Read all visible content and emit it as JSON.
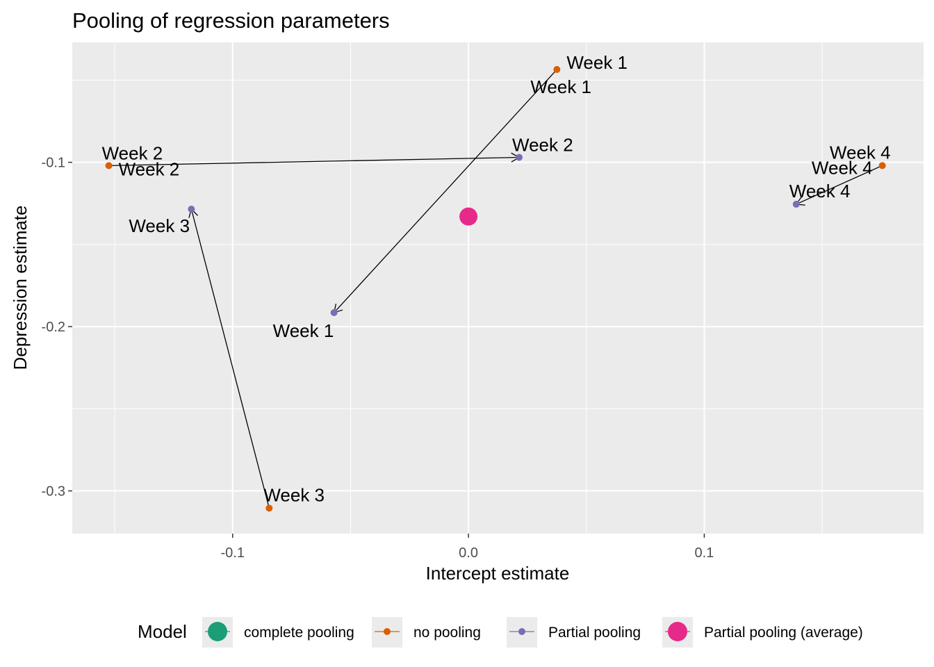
{
  "chart_data": {
    "type": "scatter",
    "title": "Pooling of regression parameters",
    "xlabel": "Intercept estimate",
    "ylabel": "Depression estimate",
    "xlim": [
      -0.168,
      0.193
    ],
    "ylim": [
      -0.326,
      -0.027
    ],
    "xticks": [
      -0.1,
      0.0,
      0.1
    ],
    "xtick_labels": [
      "-0.1",
      "0.0",
      "0.1"
    ],
    "yticks": [
      -0.1,
      -0.2,
      -0.3
    ],
    "ytick_labels": [
      "-0.1",
      "-0.2",
      "-0.3"
    ],
    "grid": true,
    "legend_position": "bottom",
    "legend_title": "Model",
    "series": [
      {
        "name": "complete pooling",
        "color": "#1B9E77",
        "points": []
      },
      {
        "name": "no pooling",
        "color": "#D95F02",
        "points": [
          {
            "label": "Week 1",
            "x": 0.0375,
            "y": -0.0435
          },
          {
            "label": "Week 2",
            "x": -0.1525,
            "y": -0.102
          },
          {
            "label": "Week 3",
            "x": -0.0845,
            "y": -0.3105
          },
          {
            "label": "Week 4",
            "x": 0.1755,
            "y": -0.102
          }
        ]
      },
      {
        "name": "Partial pooling",
        "color": "#7570B3",
        "points": [
          {
            "label": "Week 1",
            "x": -0.057,
            "y": -0.1915
          },
          {
            "label": "Week 2",
            "x": 0.0215,
            "y": -0.097
          },
          {
            "label": "Week 3",
            "x": -0.1175,
            "y": -0.1285
          },
          {
            "label": "Week 4",
            "x": 0.139,
            "y": -0.1255
          }
        ]
      },
      {
        "name": "Partial pooling (average)",
        "color": "#E7298A",
        "points": [
          {
            "label": "",
            "x": 0.0,
            "y": -0.133
          }
        ]
      }
    ],
    "arrows": [
      {
        "from": "Week 1",
        "from_xy": [
          0.0375,
          -0.0435
        ],
        "to_xy": [
          -0.057,
          -0.1915
        ]
      },
      {
        "from": "Week 2",
        "from_xy": [
          -0.1525,
          -0.102
        ],
        "to_xy": [
          0.0215,
          -0.097
        ]
      },
      {
        "from": "Week 3",
        "from_xy": [
          -0.0845,
          -0.3105
        ],
        "to_xy": [
          -0.1175,
          -0.1285
        ]
      },
      {
        "from": "Week 4",
        "from_xy": [
          0.1755,
          -0.102
        ],
        "to_xy": [
          0.139,
          -0.1255
        ]
      }
    ],
    "point_labels": [
      {
        "text": "Week 1",
        "near": [
          0.0375,
          -0.0435
        ]
      },
      {
        "text": "Week 1",
        "near": [
          0.0375,
          -0.0435
        ]
      },
      {
        "text": "Week 2",
        "near": [
          -0.1525,
          -0.102
        ]
      },
      {
        "text": "Week 2",
        "near": [
          -0.1525,
          -0.102
        ]
      },
      {
        "text": "Week 2",
        "near": [
          0.0215,
          -0.097
        ]
      },
      {
        "text": "Week 3",
        "near": [
          -0.1175,
          -0.1285
        ]
      },
      {
        "text": "Week 3",
        "near": [
          -0.0845,
          -0.3105
        ]
      },
      {
        "text": "Week 1",
        "near": [
          -0.057,
          -0.1915
        ]
      },
      {
        "text": "Week 4",
        "near": [
          0.1755,
          -0.102
        ]
      },
      {
        "text": "Week 4",
        "near": [
          0.1755,
          -0.102
        ]
      },
      {
        "text": "Week 4",
        "near": [
          0.139,
          -0.1255
        ]
      }
    ]
  }
}
